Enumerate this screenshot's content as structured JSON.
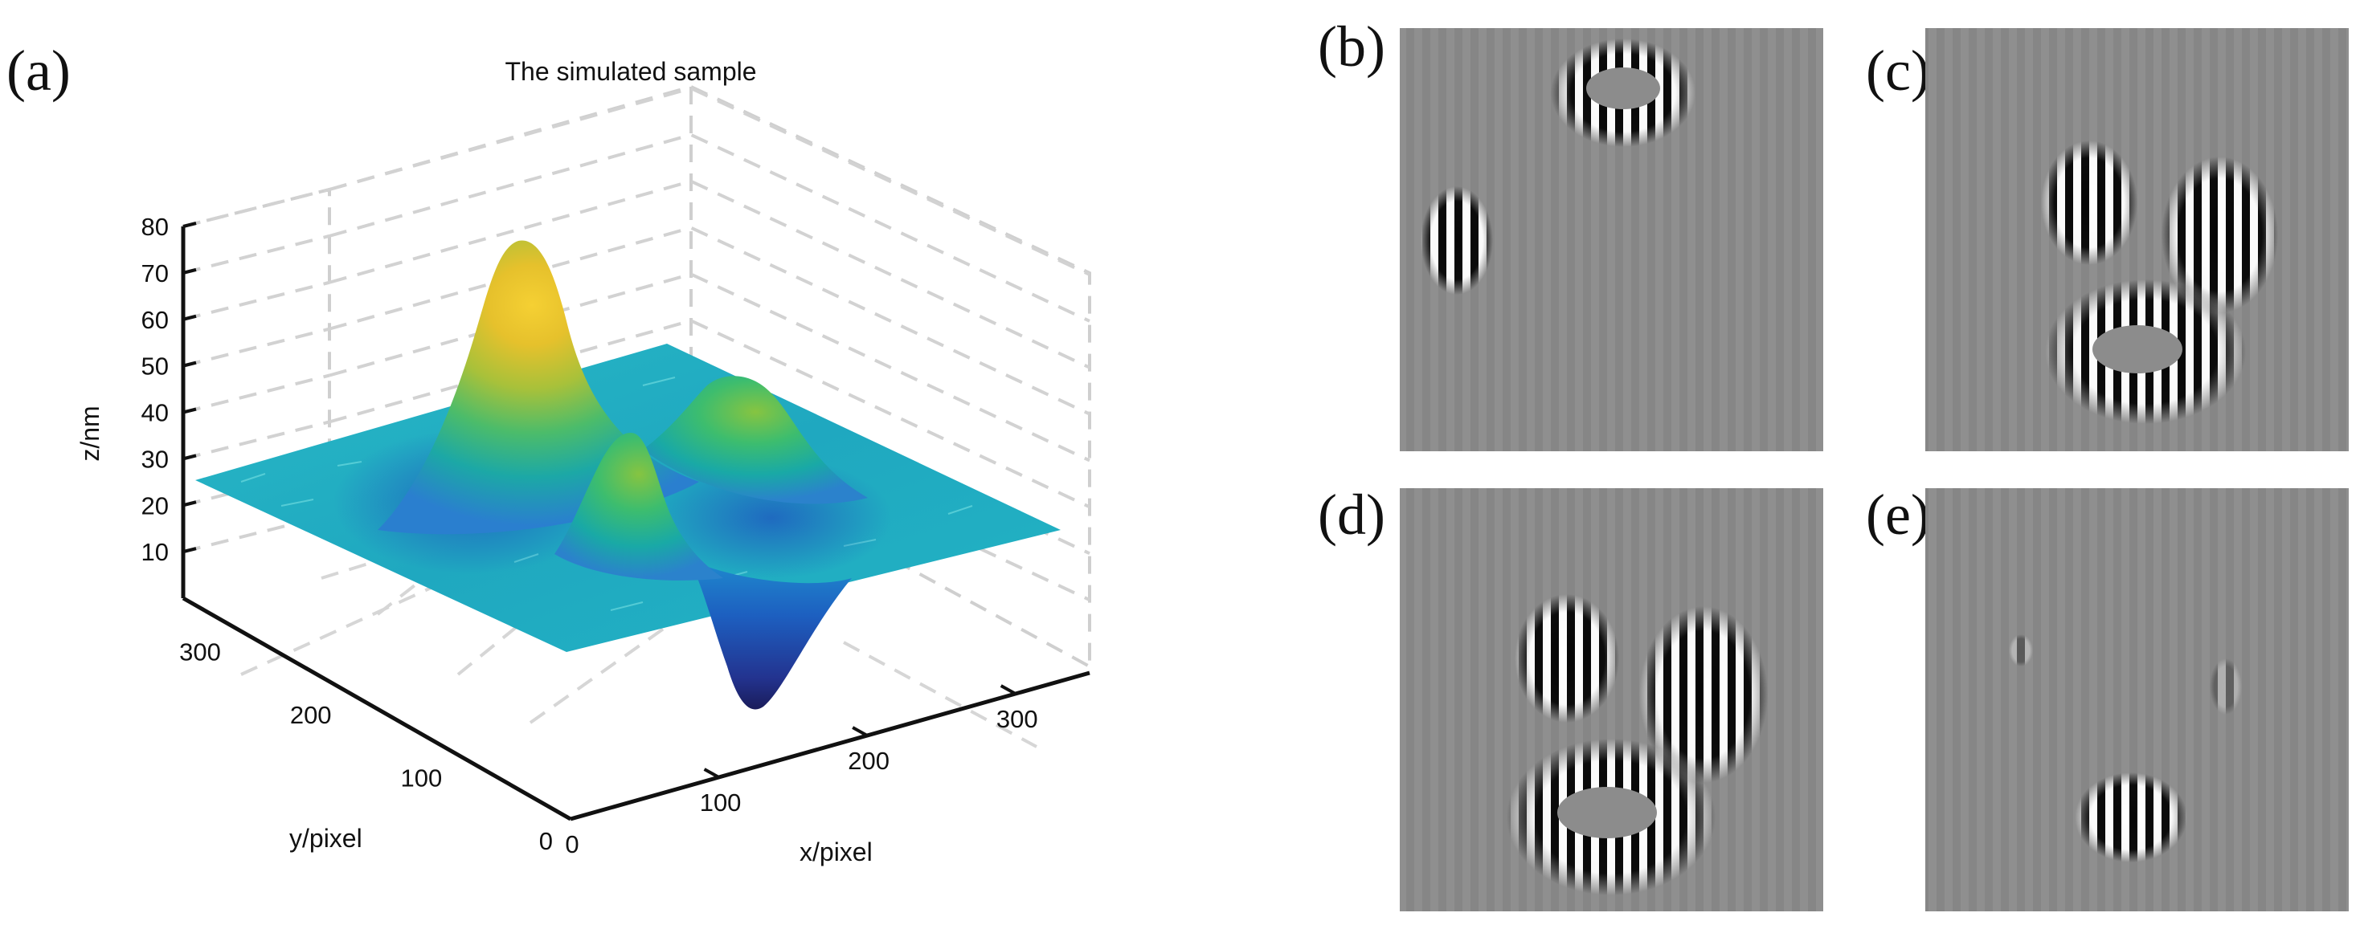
{
  "figure": {
    "panel_labels": {
      "a": "(a)",
      "b": "(b)",
      "c": "(c)",
      "d": "(d)",
      "e": "(e)"
    }
  },
  "chart_data": [
    {
      "type": "surface3d",
      "panel": "(a)",
      "title": "The simulated sample",
      "xlabel": "x/pixel",
      "ylabel": "y/pixel",
      "zlabel": "z/nm",
      "xlim": [
        0,
        350
      ],
      "ylim": [
        0,
        350
      ],
      "zlim": [
        0,
        80
      ],
      "xticks": [
        "0",
        "100",
        "200",
        "300"
      ],
      "yticks": [
        "0",
        "100",
        "200",
        "300"
      ],
      "zticks": [
        "10",
        "20",
        "30",
        "40",
        "50",
        "60",
        "70",
        "80"
      ],
      "grid": true,
      "colormap": "parula",
      "baseline_z": 30,
      "features": [
        {
          "kind": "peak",
          "x": 80,
          "y": 260,
          "peak_z": 75
        },
        {
          "kind": "peak",
          "x": 210,
          "y": 220,
          "peak_z": 50
        },
        {
          "kind": "peak",
          "x": 165,
          "y": 150,
          "peak_z": 48
        },
        {
          "kind": "pit",
          "x": 250,
          "y": 100,
          "min_z": 2
        }
      ]
    },
    {
      "type": "image",
      "panel": "(b)",
      "colormap": "gray",
      "content": "fringe pattern"
    },
    {
      "type": "image",
      "panel": "(c)",
      "colormap": "gray",
      "content": "fringe pattern"
    },
    {
      "type": "image",
      "panel": "(d)",
      "colormap": "gray",
      "content": "fringe pattern"
    },
    {
      "type": "image",
      "panel": "(e)",
      "colormap": "gray",
      "content": "fringe pattern"
    }
  ]
}
